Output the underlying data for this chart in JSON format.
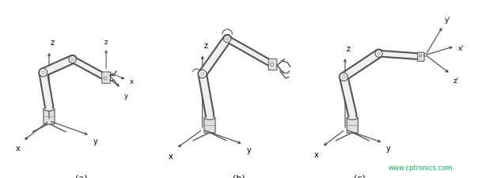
{
  "background_color": "#ffffff",
  "watermark_text": "www.cptronics.com",
  "watermark_color": "#22aa55",
  "label_a": "(a)",
  "label_b": "(b)",
  "label_c": "(c)",
  "label_fontsize": 8,
  "axis_label_fontsize": 7,
  "figure_width": 6.04,
  "figure_height": 2.26,
  "dpi": 100,
  "line_color": "#555555",
  "robot_fill": "#f0f0f0",
  "robot_stroke": "#555555",
  "arm_lw": 7,
  "arm_edge_lw": 1.0
}
